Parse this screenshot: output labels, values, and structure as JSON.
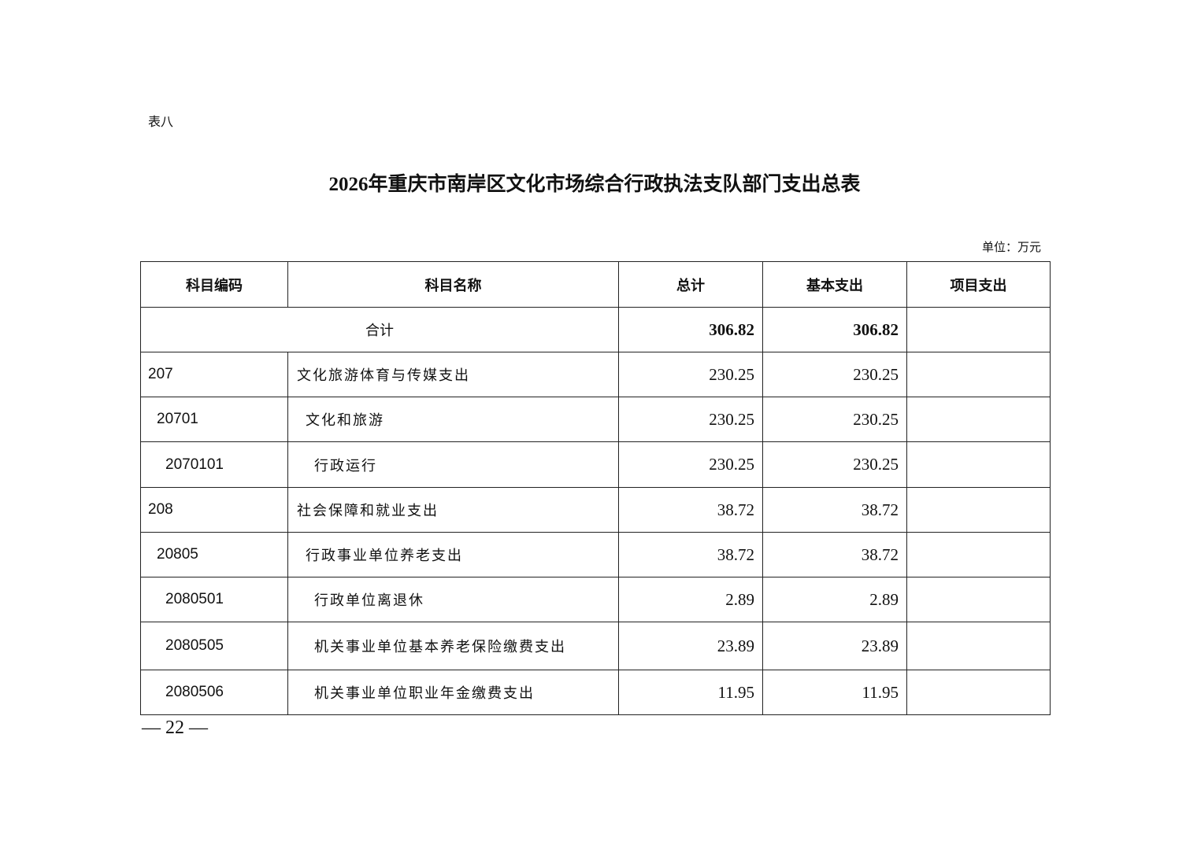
{
  "table_label": "表八",
  "title": "2026年重庆市南岸区文化市场综合行政执法支队部门支出总表",
  "unit": "单位：万元",
  "headers": [
    "科目编码",
    "科目名称",
    "总计",
    "基本支出",
    "项目支出"
  ],
  "total_row": {
    "label": "合计",
    "total": "306.82",
    "basic": "306.82",
    "project": ""
  },
  "rows": [
    {
      "code": "207",
      "name": "文化旅游体育与传媒支出",
      "total": "230.25",
      "basic": "230.25",
      "project": ""
    },
    {
      "code": "20701",
      "name": "文化和旅游",
      "total": "230.25",
      "basic": "230.25",
      "project": ""
    },
    {
      "code": "2070101",
      "name": "行政运行",
      "total": "230.25",
      "basic": "230.25",
      "project": ""
    },
    {
      "code": "208",
      "name": "社会保障和就业支出",
      "total": "38.72",
      "basic": "38.72",
      "project": ""
    },
    {
      "code": "20805",
      "name": "行政事业单位养老支出",
      "total": "38.72",
      "basic": "38.72",
      "project": ""
    },
    {
      "code": "2080501",
      "name": "行政单位离退休",
      "total": "2.89",
      "basic": "2.89",
      "project": ""
    },
    {
      "code": "2080505",
      "name": "机关事业单位基本养老保险缴费支出",
      "total": "23.89",
      "basic": "23.89",
      "project": ""
    },
    {
      "code": "2080506",
      "name": "机关事业单位职业年金缴费支出",
      "total": "11.95",
      "basic": "11.95",
      "project": ""
    }
  ],
  "page_number": "— 22 —"
}
